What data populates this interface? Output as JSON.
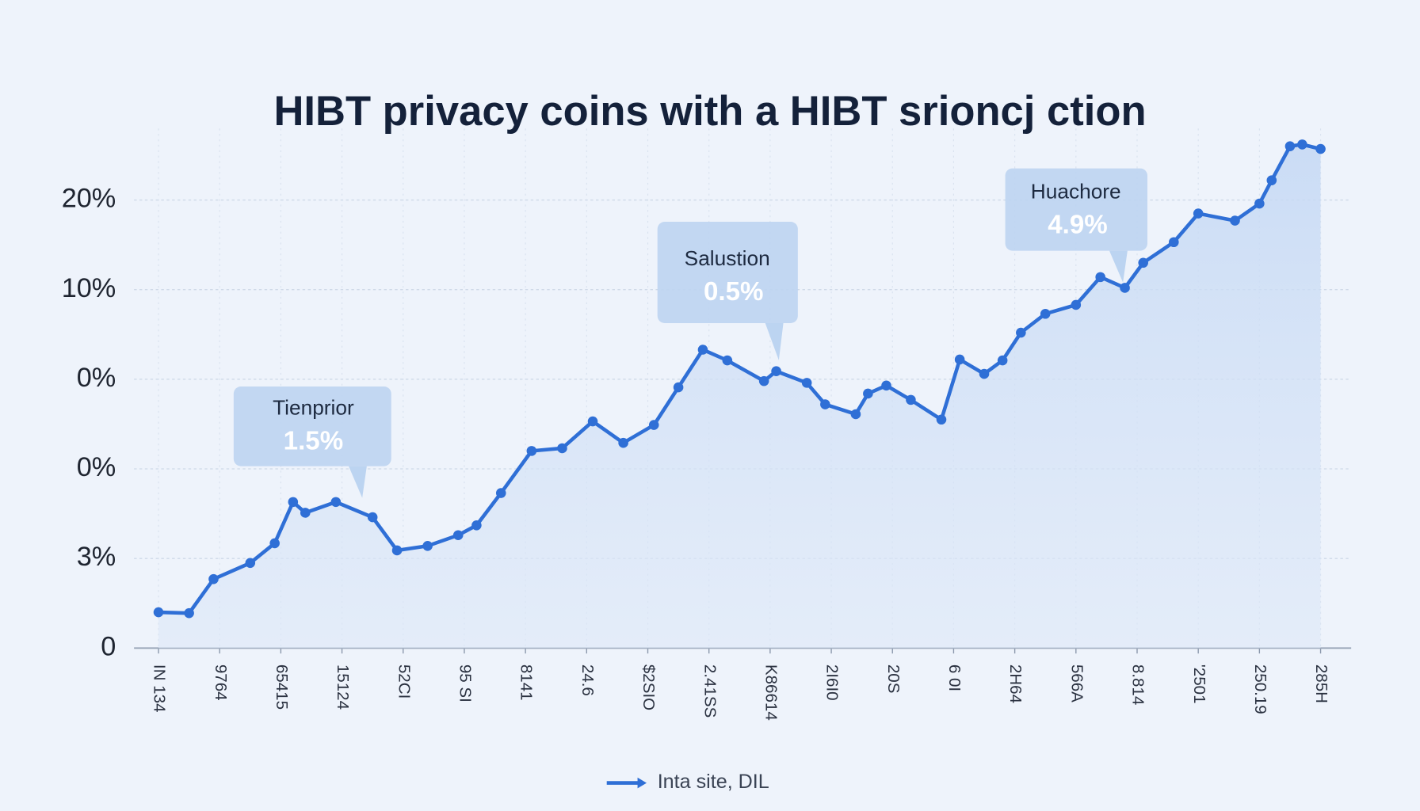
{
  "chart_data": {
    "type": "line",
    "title": "HIBT privacy coins with a HIBT srioncj ction",
    "x": [
      0,
      0.5,
      0.9,
      1.5,
      1.9,
      2.2,
      2.4,
      2.9,
      3.5,
      3.9,
      4.4,
      4.9,
      5.2,
      5.6,
      6.1,
      6.6,
      7.1,
      7.6,
      8.1,
      8.5,
      8.9,
      9.3,
      9.9,
      10.1,
      10.6,
      10.9,
      11.4,
      11.6,
      11.9,
      12.3,
      12.8,
      13.1,
      13.5,
      13.8,
      14.1,
      14.5,
      15.0,
      15.4,
      15.8,
      16.1,
      16.6,
      17.0,
      17.6,
      18.0,
      18.2,
      18.5,
      18.7,
      19.0
    ],
    "series": [
      {
        "name": "Inta site, DIL",
        "color": "#2f6fd6",
        "values": [
          0.4,
          0.39,
          0.77,
          0.95,
          1.17,
          1.63,
          1.51,
          1.63,
          1.46,
          1.09,
          1.14,
          1.26,
          1.37,
          1.73,
          2.2,
          2.23,
          2.53,
          2.29,
          2.49,
          2.91,
          3.33,
          3.21,
          2.98,
          3.09,
          2.96,
          2.72,
          2.61,
          2.84,
          2.93,
          2.77,
          2.55,
          3.22,
          3.06,
          3.21,
          3.52,
          3.73,
          3.83,
          4.14,
          4.02,
          4.3,
          4.53,
          4.85,
          4.77,
          4.96,
          5.22,
          5.6,
          5.62,
          5.57
        ]
      }
    ],
    "xlim": [
      -0.4,
      19.5
    ],
    "xticks": [
      {
        "value": 0,
        "label": "IN 134"
      },
      {
        "value": 1,
        "label": "9764"
      },
      {
        "value": 2,
        "label": "65415"
      },
      {
        "value": 3,
        "label": "15124"
      },
      {
        "value": 4,
        "label": "52CI"
      },
      {
        "value": 5,
        "label": "95 SI"
      },
      {
        "value": 6,
        "label": "8141"
      },
      {
        "value": 7,
        "label": "24.6"
      },
      {
        "value": 8,
        "label": "$2SIO"
      },
      {
        "value": 9,
        "label": "2.41SS"
      },
      {
        "value": 10,
        "label": "K86614"
      },
      {
        "value": 11,
        "label": "2I6I0"
      },
      {
        "value": 12,
        "label": "20S"
      },
      {
        "value": 13,
        "label": "6 0I"
      },
      {
        "value": 14,
        "label": "2H64"
      },
      {
        "value": 15,
        "label": "566A"
      },
      {
        "value": 16,
        "label": "8.814"
      },
      {
        "value": 17,
        "label": "'2501"
      },
      {
        "value": 18,
        "label": "250.19"
      },
      {
        "value": 19,
        "label": "285H"
      }
    ],
    "ylim": [
      0,
      6
    ],
    "yticks": [
      0,
      {
        "value": 1,
        "label": "3%"
      },
      {
        "value": 2,
        "label": "0%"
      },
      {
        "value": 3,
        "label": "0%"
      },
      {
        "value": 4,
        "label": "10%"
      },
      {
        "value": 5,
        "label": "20%"
      }
    ],
    "grid": true,
    "legend": "bottom",
    "annotations": [
      {
        "title": "Tienprior",
        "value_label": "1.5%"
      },
      {
        "title": "Salustion",
        "value_label": "0.5%"
      },
      {
        "title": "Huachore",
        "value_label": "4.9%"
      }
    ]
  }
}
